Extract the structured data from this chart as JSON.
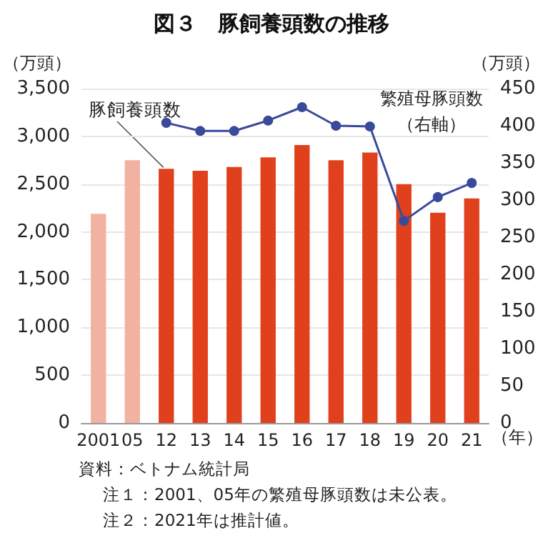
{
  "chart_data": {
    "type": "bar",
    "title": "図３　豚飼養頭数の推移",
    "ylabel": "（万頭）",
    "y2label": "（万頭）",
    "xlabel": "（年）",
    "categories": [
      "2001",
      "05",
      "12",
      "13",
      "14",
      "15",
      "16",
      "17",
      "18",
      "19",
      "20",
      "21"
    ],
    "series": [
      {
        "name": "豚飼養頭数",
        "color": "#e0401c",
        "colors": [
          "#f2b2a2",
          "#f2b2a2",
          "#e0401c",
          "#e0401c",
          "#e0401c",
          "#e0401c",
          "#e0401c",
          "#e0401c",
          "#e0401c",
          "#e0401c",
          "#e0401c",
          "#e0401c"
        ],
        "values": [
          2190,
          2750,
          2660,
          2640,
          2680,
          2780,
          2910,
          2750,
          2830,
          2500,
          2200,
          2350
        ]
      },
      {
        "name": "繁殖母豚頭数（右軸）",
        "type": "line",
        "axis": "y2",
        "color": "#3a4a9a",
        "values": [
          null,
          null,
          404,
          393,
          393,
          407,
          425,
          400,
          399,
          272,
          304,
          323
        ]
      }
    ],
    "ylim": [
      0,
      3500
    ],
    "yticks": [
      0,
      500,
      {
        "value": 1000,
        "label": "1,000"
      },
      {
        "value": 1500,
        "label": "1,500"
      },
      {
        "value": 2000,
        "label": "2,000"
      },
      {
        "value": 2500,
        "label": "2,500"
      },
      {
        "value": 3000,
        "label": "3,000"
      },
      {
        "value": 3500,
        "label": "3,500"
      }
    ],
    "y2lim": [
      0,
      450
    ],
    "y2ticks": [
      0,
      50,
      100,
      150,
      200,
      250,
      300,
      350,
      400,
      450
    ],
    "grid": "y",
    "legend": false,
    "marker": "circle",
    "line_style": "solid",
    "annotations": [
      "資料：ベトナム統計局",
      "注１：2001、05年の繁殖母豚頭数は未公表。",
      "注２：2021年は推計値。"
    ]
  }
}
